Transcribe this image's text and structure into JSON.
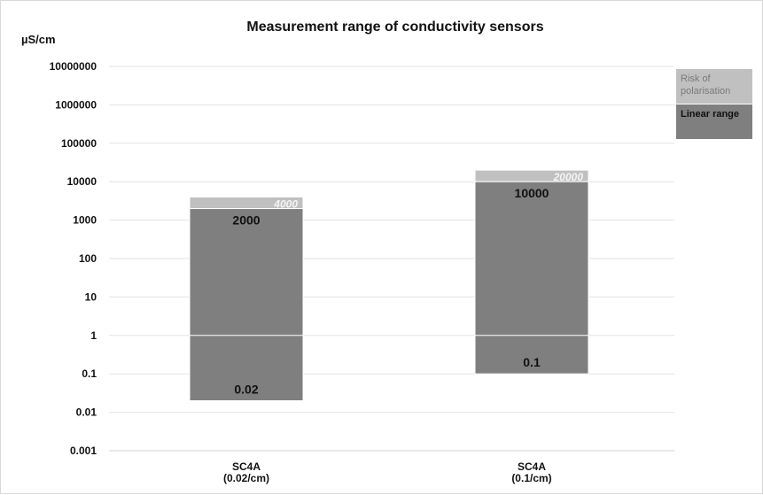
{
  "colors": {
    "linear": "#7f7f7f",
    "risk": "#c0c0c0",
    "grid": "#e3e3e3",
    "axis_line": "#d0d0d0",
    "one_line": "#ffffff",
    "risk_text": "#f4f4f4",
    "legend_risk_text": "#7a7a7a",
    "legend_linear_text": "#111111"
  },
  "chart_data": {
    "type": "bar",
    "title": "Measurement range of conductivity sensors",
    "ylabel": "µS/cm",
    "y_scale": "log",
    "ylim": [
      0.001,
      10000000
    ],
    "y_ticks": [
      "0.001",
      "0.01",
      "0.1",
      "1",
      "10",
      "100",
      "1000",
      "10000",
      "100000",
      "1000000",
      "10000000"
    ],
    "grid": true,
    "legend_position": "right",
    "categories": [
      [
        "SC4A",
        "(0.02/cm)"
      ],
      [
        "SC4A",
        "(0.1/cm)"
      ]
    ],
    "series": [
      {
        "name": "Linear range",
        "min": [
          0.02,
          0.1
        ],
        "max": [
          2000,
          10000
        ],
        "min_labels": [
          "0.02",
          "0.1"
        ],
        "max_labels": [
          "2000",
          "10000"
        ]
      },
      {
        "name": "Risk of polarisation",
        "min": [
          2000,
          10000
        ],
        "max": [
          4000,
          20000
        ],
        "max_labels": [
          "4000",
          "20000"
        ]
      }
    ],
    "legend": [
      {
        "lines": [
          "Risk of",
          "polarisation"
        ]
      },
      {
        "lines": [
          "Linear range"
        ]
      }
    ]
  }
}
